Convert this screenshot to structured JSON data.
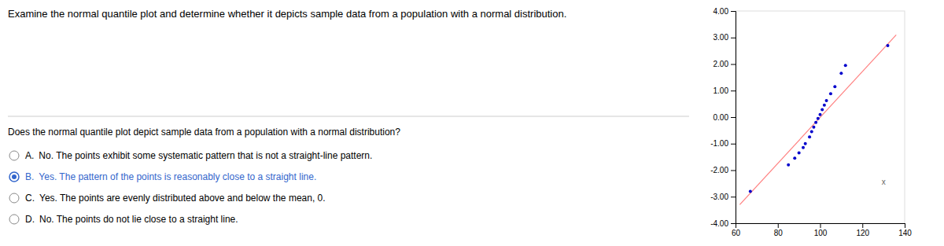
{
  "page": {
    "title": "Examine the normal quantile plot and determine whether it depicts sample data from a population with a normal distribution.",
    "question": "Does the normal quantile plot depict sample data from a population with a normal distribution?",
    "color": "#3366cc",
    "options": [
      {
        "label": "A.",
        "text": "No. The points exhibit some systematic pattern that is not a straight-line pattern.",
        "selected": false
      },
      {
        "label": "B.",
        "text": "Yes. The pattern of the points is reasonably close to a straight line.",
        "selected": true
      },
      {
        "label": "C.",
        "text": "Yes. The points are evenly distributed above and below the mean, 0.",
        "selected": false
      },
      {
        "label": "D.",
        "text": "No. The points do not lie close to a straight line.",
        "selected": false
      }
    ]
  },
  "chart_data": {
    "type": "scatter",
    "series": [
      {
        "type": "line",
        "color": "#ff8080",
        "x": [
          62,
          136
        ],
        "values": [
          -3.3,
          3.1
        ]
      },
      {
        "type": "scatter",
        "color": "#0000cc",
        "x": [
          67,
          85,
          88,
          90,
          92,
          93,
          95,
          96,
          97,
          98,
          99,
          100,
          101,
          102,
          103,
          105,
          107,
          110,
          112,
          132
        ],
        "values": [
          -2.8,
          -1.8,
          -1.55,
          -1.35,
          -1.15,
          -1.0,
          -0.75,
          -0.55,
          -0.38,
          -0.2,
          -0.05,
          0.1,
          0.28,
          0.45,
          0.62,
          0.88,
          1.15,
          1.65,
          1.95,
          2.7
        ]
      }
    ],
    "xlim": [
      60,
      140
    ],
    "ylim": [
      -4,
      4
    ],
    "xticks": [
      60,
      80,
      100,
      120,
      140
    ],
    "yticks": [
      {
        "value": -4,
        "label": "-4.00"
      },
      {
        "value": -3,
        "label": "-3.00"
      },
      {
        "value": -2,
        "label": "-2.00"
      },
      {
        "value": -1,
        "label": "-1.00"
      },
      {
        "value": 0,
        "label": "0.00"
      },
      {
        "value": 1,
        "label": "1.00"
      },
      {
        "value": 2,
        "label": "2.00"
      },
      {
        "value": 3,
        "label": "3.00"
      },
      {
        "value": 4,
        "label": "4.00"
      }
    ],
    "annotations": [
      {
        "text": "x",
        "x": 130,
        "y": -2.45
      }
    ],
    "grid": false
  }
}
